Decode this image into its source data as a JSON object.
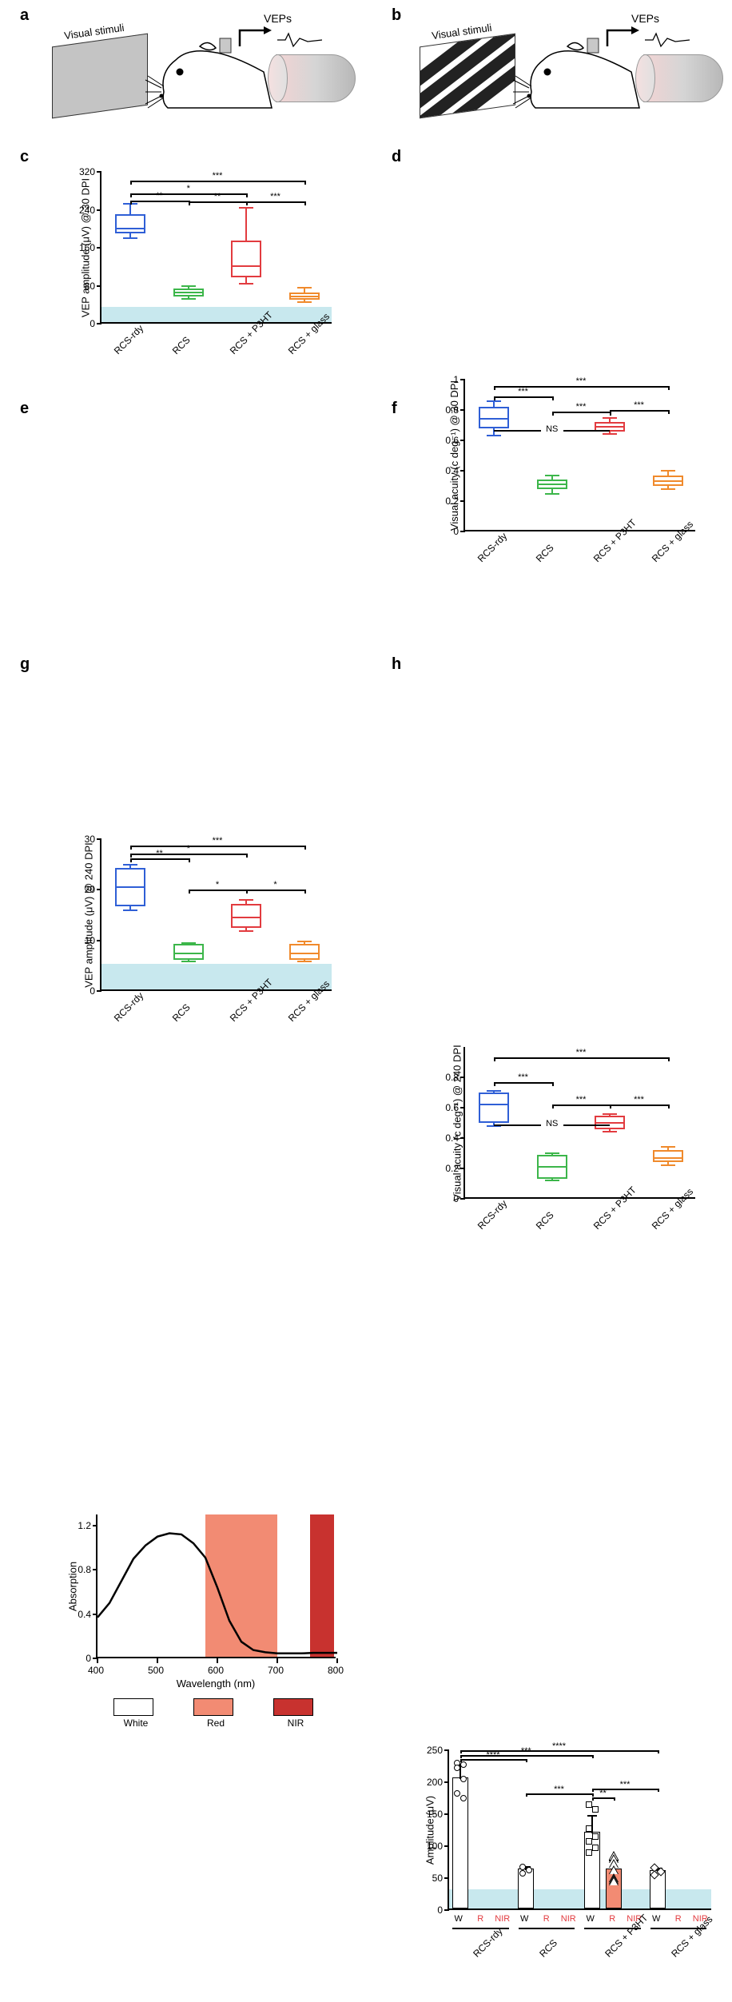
{
  "colors": {
    "blue": "#2f5fd6",
    "green": "#3cb64a",
    "red": "#e23b3f",
    "orange": "#f08a2c",
    "noise": "#c8e8ee",
    "red_band": "#f28b73",
    "nir_band": "#c8322f",
    "black": "#000000",
    "white": "#ffffff"
  },
  "font": {
    "axis": 13,
    "tick": 12,
    "label": 20,
    "sig": 11
  },
  "panels": {
    "a": {
      "label": "a",
      "stim_label": "Visual stimuli",
      "vep_label": "VEPs",
      "stim_fill": "#c4c4c4",
      "type": "flash"
    },
    "b": {
      "label": "b",
      "stim_label": "Visual stimuli",
      "vep_label": "VEPs",
      "type": "grating"
    }
  },
  "groups": [
    "RCS-rdy",
    "RCS",
    "RCS + P3HT",
    "RCS + glass"
  ],
  "group_colors": [
    "#2f5fd6",
    "#3cb64a",
    "#e23b3f",
    "#f08a2c"
  ],
  "c": {
    "label": "c",
    "ylabel": "VEP amplitude (μV) @ 30 DPI",
    "ylim": [
      0,
      320
    ],
    "yticks": [
      0,
      80,
      160,
      240,
      320
    ],
    "noise_top": 32,
    "boxes": [
      {
        "min": 180,
        "q1": 190,
        "med": 200,
        "q3": 230,
        "max": 252
      },
      {
        "min": 52,
        "q1": 58,
        "med": 66,
        "q3": 74,
        "max": 80
      },
      {
        "min": 84,
        "q1": 98,
        "med": 122,
        "q3": 175,
        "max": 245
      },
      {
        "min": 45,
        "q1": 50,
        "med": 58,
        "q3": 66,
        "max": 76
      }
    ],
    "sig": [
      {
        "i": 0,
        "j": 1,
        "y": 260,
        "text": "**"
      },
      {
        "i": 0,
        "j": 2,
        "y": 275,
        "text": "*"
      },
      {
        "i": 0,
        "j": 3,
        "y": 302,
        "text": "***"
      },
      {
        "i": 1,
        "j": 2,
        "y": 258,
        "text": "**"
      },
      {
        "i": 2,
        "j": 3,
        "y": 257,
        "text": "***"
      }
    ]
  },
  "d": {
    "label": "d",
    "ylabel": "Visual acuity (c deg⁻¹) @ 30 DPI",
    "ylim": [
      0,
      1.0
    ],
    "yticks": [
      0,
      0.2,
      0.4,
      0.6,
      0.8,
      1.0
    ],
    "noise_top": 0,
    "boxes": [
      {
        "min": 0.63,
        "q1": 0.68,
        "med": 0.74,
        "q3": 0.82,
        "max": 0.86
      },
      {
        "min": 0.25,
        "q1": 0.28,
        "med": 0.31,
        "q3": 0.34,
        "max": 0.37
      },
      {
        "min": 0.64,
        "q1": 0.66,
        "med": 0.69,
        "q3": 0.72,
        "max": 0.75
      },
      {
        "min": 0.28,
        "q1": 0.3,
        "med": 0.33,
        "q3": 0.37,
        "max": 0.4
      }
    ],
    "sig": [
      {
        "i": 0,
        "j": 1,
        "y": 0.89,
        "text": "***"
      },
      {
        "i": 0,
        "j": 3,
        "y": 0.96,
        "text": "***"
      },
      {
        "i": 1,
        "j": 2,
        "y": 0.79,
        "text": "***"
      },
      {
        "i": 2,
        "j": 3,
        "y": 0.8,
        "text": "***"
      }
    ],
    "ns": {
      "i": 0,
      "j": 2,
      "y": 0.67,
      "text": "NS"
    }
  },
  "e": {
    "label": "e",
    "ylabel": "VEP amplitude (μV) @ 240 DPI",
    "ylim": [
      0,
      30
    ],
    "yticks": [
      0,
      10,
      20,
      30
    ],
    "noise_top": 5,
    "boxes": [
      {
        "min": 16.0,
        "q1": 16.8,
        "med": 20.5,
        "q3": 24.3,
        "max": 25.0
      },
      {
        "min": 5.8,
        "q1": 6.2,
        "med": 7.5,
        "q3": 9.3,
        "max": 9.5
      },
      {
        "min": 11.8,
        "q1": 12.5,
        "med": 14.5,
        "q3": 17.2,
        "max": 18.0
      },
      {
        "min": 5.8,
        "q1": 6.2,
        "med": 7.5,
        "q3": 9.3,
        "max": 9.8
      }
    ],
    "sig": [
      {
        "i": 0,
        "j": 1,
        "y": 26.2,
        "text": "**"
      },
      {
        "i": 0,
        "j": 2,
        "y": 27.2,
        "text": "*"
      },
      {
        "i": 0,
        "j": 3,
        "y": 28.8,
        "text": "***"
      },
      {
        "i": 1,
        "j": 2,
        "y": 20,
        "text": "*"
      },
      {
        "i": 2,
        "j": 3,
        "y": 20,
        "text": "*"
      }
    ]
  },
  "f": {
    "label": "f",
    "ylabel": "Visual acuity (c deg⁻¹) @ 240 DPI",
    "ylim": [
      0,
      1.0
    ],
    "yticks": [
      0,
      0.2,
      0.4,
      0.6,
      0.8
    ],
    "noise_top": 0,
    "boxes": [
      {
        "min": 0.48,
        "q1": 0.5,
        "med": 0.62,
        "q3": 0.7,
        "max": 0.71
      },
      {
        "min": 0.12,
        "q1": 0.13,
        "med": 0.21,
        "q3": 0.29,
        "max": 0.3
      },
      {
        "min": 0.44,
        "q1": 0.46,
        "med": 0.5,
        "q3": 0.55,
        "max": 0.56
      },
      {
        "min": 0.22,
        "q1": 0.24,
        "med": 0.27,
        "q3": 0.32,
        "max": 0.34
      }
    ],
    "sig": [
      {
        "i": 0,
        "j": 1,
        "y": 0.77,
        "text": "***"
      },
      {
        "i": 0,
        "j": 3,
        "y": 0.93,
        "text": "***"
      },
      {
        "i": 1,
        "j": 2,
        "y": 0.62,
        "text": "***"
      },
      {
        "i": 2,
        "j": 3,
        "y": 0.62,
        "text": "***"
      }
    ],
    "ns": {
      "i": 0,
      "j": 2,
      "y": 0.49,
      "text": "NS"
    }
  },
  "g": {
    "label": "g",
    "ylabel": "Absorption",
    "xlabel": "Wavelength (nm)",
    "xlim": [
      400,
      800
    ],
    "ylim": [
      0,
      1.3
    ],
    "yticks": [
      0,
      0.4,
      0.8,
      1.2
    ],
    "xticks": [
      400,
      500,
      600,
      700,
      800
    ],
    "red_band": [
      580,
      700
    ],
    "nir_band": [
      755,
      795
    ],
    "curve": [
      [
        400,
        0.37
      ],
      [
        420,
        0.5
      ],
      [
        440,
        0.7
      ],
      [
        460,
        0.9
      ],
      [
        480,
        1.02
      ],
      [
        500,
        1.1
      ],
      [
        520,
        1.13
      ],
      [
        540,
        1.12
      ],
      [
        560,
        1.04
      ],
      [
        580,
        0.91
      ],
      [
        600,
        0.64
      ],
      [
        620,
        0.34
      ],
      [
        640,
        0.15
      ],
      [
        660,
        0.075
      ],
      [
        680,
        0.055
      ],
      [
        700,
        0.045
      ],
      [
        720,
        0.045
      ],
      [
        740,
        0.045
      ],
      [
        760,
        0.05
      ],
      [
        780,
        0.05
      ],
      [
        800,
        0.05
      ]
    ],
    "legend": [
      {
        "label": "White",
        "fill": "#ffffff"
      },
      {
        "label": "Red",
        "fill": "#f28b73"
      },
      {
        "label": "NIR",
        "fill": "#c8322f"
      }
    ]
  },
  "h": {
    "label": "h",
    "ylabel": "Amplitude (μV)",
    "ylim": [
      0,
      250
    ],
    "yticks": [
      0,
      50,
      100,
      150,
      200,
      250
    ],
    "noise_top": 30,
    "sub_labels": [
      "W",
      "R",
      "NIR"
    ],
    "sub_colors": [
      "#000000",
      "#e23b3f",
      "#e23b3f"
    ],
    "bars": [
      {
        "group": 0,
        "sub": 0,
        "mean": 205,
        "err": 22,
        "fill": "#ffffff",
        "marker": "circle",
        "points": [
          230,
          228,
          223,
          205,
          183,
          175
        ]
      },
      {
        "group": 1,
        "sub": 0,
        "mean": 62,
        "err": 6,
        "fill": "#ffffff",
        "marker": "circle",
        "points": [
          68,
          62,
          58
        ]
      },
      {
        "group": 2,
        "sub": 0,
        "mean": 120,
        "err": 28,
        "fill": "#ffffff",
        "marker": "square",
        "points": [
          165,
          158,
          128,
          115,
          108,
          98,
          90
        ]
      },
      {
        "group": 2,
        "sub": 1,
        "mean": 63,
        "err": 15,
        "fill": "#f28b73",
        "marker": "triangle",
        "points": [
          85,
          80,
          72,
          62,
          50,
          48,
          45
        ]
      },
      {
        "group": 3,
        "sub": 0,
        "mean": 60,
        "err": 5,
        "fill": "#ffffff",
        "marker": "diamond",
        "points": [
          66,
          60,
          55
        ]
      }
    ],
    "sig": [
      {
        "b1": 0,
        "b2": 1,
        "y": 236,
        "text": "****"
      },
      {
        "b1": 0,
        "b2": 2,
        "y": 243,
        "text": "***"
      },
      {
        "b1": 0,
        "b2": 4,
        "y": 250,
        "text": "****"
      },
      {
        "b1": 1,
        "b2": 2,
        "y": 182,
        "text": "***"
      },
      {
        "b1": 2,
        "b2": 3,
        "y": 176,
        "text": "**"
      },
      {
        "b1": 2,
        "b2": 4,
        "y": 190,
        "text": "***"
      }
    ]
  }
}
